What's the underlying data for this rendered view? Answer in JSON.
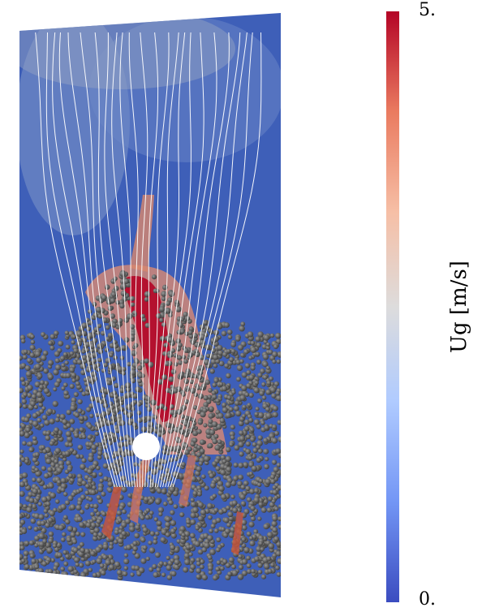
{
  "colorbar": {
    "title": "Ug [m/s]",
    "max_label": "5.",
    "min_label": "0.",
    "colors": [
      "#3b4cc0",
      "#7396f5",
      "#b0cbff",
      "#dddcdc",
      "#f6bfa6",
      "#ea7b60",
      "#b40426"
    ]
  },
  "scene": {
    "background_color": "#3b5bb0",
    "particle_color": "#6a6a6a",
    "streamline_color": "#ffffff",
    "obstacle_color": "#ffffff"
  }
}
